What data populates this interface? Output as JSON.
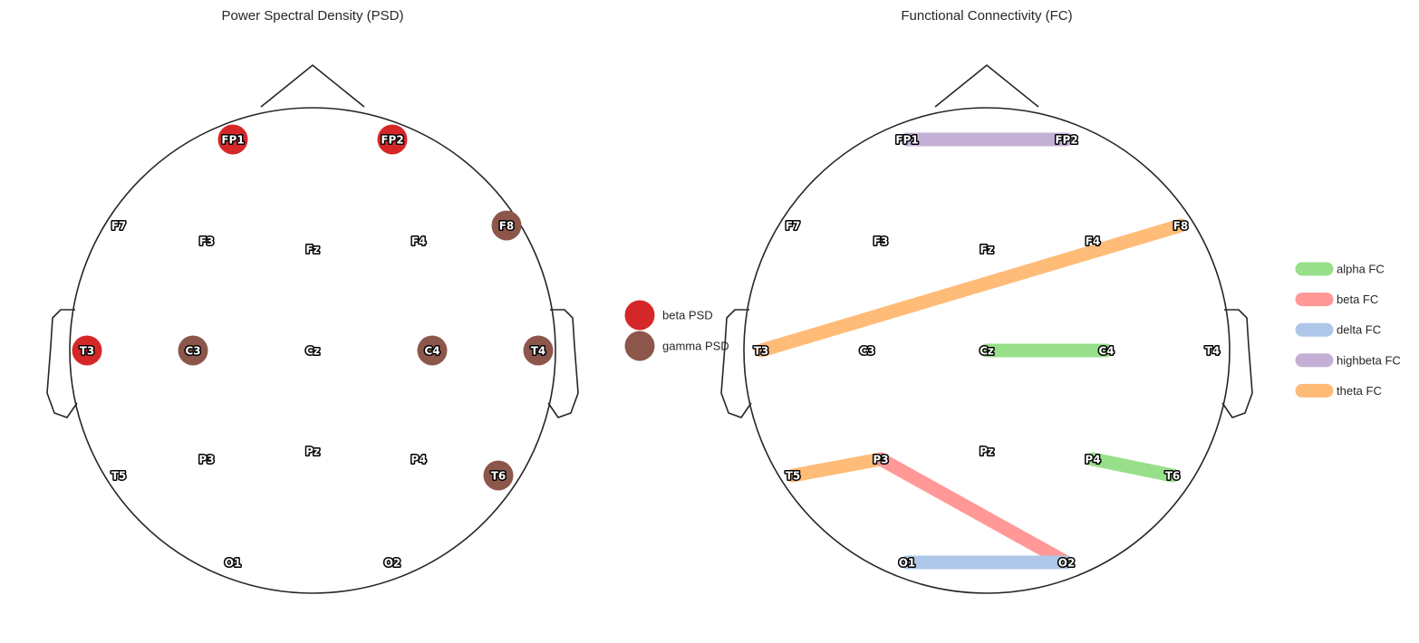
{
  "chart_data": [
    {
      "type": "topomap",
      "title": "Power Spectral Density (PSD)",
      "electrodes": [
        "FP1",
        "FP2",
        "F7",
        "F3",
        "Fz",
        "F4",
        "F8",
        "T3",
        "C3",
        "Cz",
        "C4",
        "T4",
        "T5",
        "P3",
        "Pz",
        "P4",
        "T6",
        "O1",
        "O2"
      ],
      "highlighted": [
        {
          "electrode": "FP1",
          "band": "beta PSD"
        },
        {
          "electrode": "FP2",
          "band": "beta PSD"
        },
        {
          "electrode": "T3",
          "band": "beta PSD"
        },
        {
          "electrode": "F8",
          "band": "gamma PSD"
        },
        {
          "electrode": "C3",
          "band": "gamma PSD"
        },
        {
          "electrode": "C4",
          "band": "gamma PSD"
        },
        {
          "electrode": "T4",
          "band": "gamma PSD"
        },
        {
          "electrode": "T6",
          "band": "gamma PSD"
        }
      ],
      "legend": [
        {
          "label": "beta PSD",
          "color": "#d62728"
        },
        {
          "label": "gamma PSD",
          "color": "#8c564b"
        }
      ],
      "legend_placement": "right"
    },
    {
      "type": "connectivity",
      "title": "Functional Connectivity (FC)",
      "electrodes": [
        "FP1",
        "FP2",
        "F7",
        "F3",
        "Fz",
        "F4",
        "F8",
        "T3",
        "C3",
        "Cz",
        "C4",
        "T4",
        "T5",
        "P3",
        "Pz",
        "P4",
        "T6",
        "O1",
        "O2"
      ],
      "connections": [
        {
          "from": "FP1",
          "to": "FP2",
          "band": "highbeta FC"
        },
        {
          "from": "T3",
          "to": "F8",
          "band": "theta FC"
        },
        {
          "from": "Cz",
          "to": "C4",
          "band": "alpha FC"
        },
        {
          "from": "T5",
          "to": "P3",
          "band": "theta FC"
        },
        {
          "from": "P3",
          "to": "O2",
          "band": "beta FC"
        },
        {
          "from": "P4",
          "to": "T6",
          "band": "alpha FC"
        },
        {
          "from": "O1",
          "to": "O2",
          "band": "delta FC"
        }
      ],
      "legend": [
        {
          "label": "alpha FC",
          "color": "#98df8a"
        },
        {
          "label": "beta FC",
          "color": "#ff9896"
        },
        {
          "label": "delta FC",
          "color": "#aec7e8"
        },
        {
          "label": "highbeta FC",
          "color": "#c5b0d5"
        },
        {
          "label": "theta FC",
          "color": "#ffbb78"
        }
      ],
      "legend_placement": "right"
    }
  ]
}
